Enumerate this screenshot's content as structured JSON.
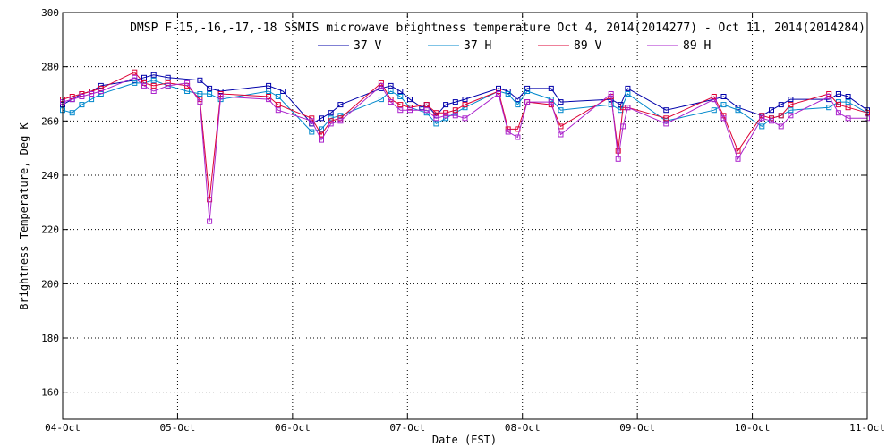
{
  "chart_data": {
    "type": "line",
    "title": "DMSP F-15,-16,-17,-18 SSMIS microwave brightness temperature Oct  4, 2014(2014277) - Oct 11, 2014(2014284)",
    "xlabel": "Date (EST)",
    "ylabel": "Brightness Temperature, Deg K",
    "xlim": [
      "2014-10-04T00:00",
      "2014-10-11T00:00"
    ],
    "ylim": [
      150,
      300
    ],
    "x_ticks": [
      "04-Oct",
      "05-Oct",
      "06-Oct",
      "07-Oct",
      "08-Oct",
      "09-Oct",
      "10-Oct",
      "11-Oct"
    ],
    "y_ticks": [
      160,
      180,
      200,
      220,
      240,
      260,
      280,
      300
    ],
    "grid": true,
    "legend_position": "top-center",
    "series": [
      {
        "name": "37 V",
        "color": "#0000aa",
        "points": [
          [
            "2014-10-04T00:00",
            266
          ],
          [
            "2014-10-04T02:00",
            268
          ],
          [
            "2014-10-04T04:00",
            270
          ],
          [
            "2014-10-04T06:00",
            271
          ],
          [
            "2014-10-04T08:00",
            273
          ],
          [
            "2014-10-04T15:00",
            275
          ],
          [
            "2014-10-04T17:00",
            276
          ],
          [
            "2014-10-04T19:00",
            277
          ],
          [
            "2014-10-04T22:00",
            276
          ],
          [
            "2014-10-05T04:40",
            275
          ],
          [
            "2014-10-05T06:40",
            272
          ],
          [
            "2014-10-05T09:00",
            271
          ],
          [
            "2014-10-05T19:00",
            273
          ],
          [
            "2014-10-05T22:00",
            271
          ],
          [
            "2014-10-06T04:00",
            259
          ],
          [
            "2014-10-06T06:00",
            261
          ],
          [
            "2014-10-06T08:00",
            263
          ],
          [
            "2014-10-06T10:00",
            266
          ],
          [
            "2014-10-06T18:30",
            272
          ],
          [
            "2014-10-06T20:30",
            273
          ],
          [
            "2014-10-06T22:30",
            271
          ],
          [
            "2014-10-07T00:30",
            268
          ],
          [
            "2014-10-07T03:00",
            265
          ],
          [
            "2014-10-07T04:00",
            266
          ],
          [
            "2014-10-07T06:00",
            262
          ],
          [
            "2014-10-07T08:00",
            266
          ],
          [
            "2014-10-07T10:00",
            267
          ],
          [
            "2014-10-07T12:00",
            268
          ],
          [
            "2014-10-07T19:00",
            272
          ],
          [
            "2014-10-07T21:00",
            271
          ],
          [
            "2014-10-07T23:00",
            268
          ],
          [
            "2014-10-08T01:00",
            272
          ],
          [
            "2014-10-08T06:00",
            272
          ],
          [
            "2014-10-08T08:00",
            267
          ],
          [
            "2014-10-08T18:30",
            268
          ],
          [
            "2014-10-08T20:30",
            266
          ],
          [
            "2014-10-08T22:00",
            272
          ],
          [
            "2014-10-09T06:00",
            264
          ],
          [
            "2014-10-09T16:00",
            268
          ],
          [
            "2014-10-09T18:00",
            269
          ],
          [
            "2014-10-09T21:00",
            265
          ],
          [
            "2014-10-10T02:00",
            262
          ],
          [
            "2014-10-10T04:00",
            264
          ],
          [
            "2014-10-10T06:00",
            266
          ],
          [
            "2014-10-10T08:00",
            268
          ],
          [
            "2014-10-10T16:00",
            268
          ],
          [
            "2014-10-10T18:00",
            270
          ],
          [
            "2014-10-10T20:00",
            269
          ],
          [
            "2014-10-11T00:00",
            264
          ]
        ]
      },
      {
        "name": "37 H",
        "color": "#0088cc",
        "points": [
          [
            "2014-10-04T00:00",
            264
          ],
          [
            "2014-10-04T02:00",
            263
          ],
          [
            "2014-10-04T04:00",
            266
          ],
          [
            "2014-10-04T06:00",
            268
          ],
          [
            "2014-10-04T08:00",
            270
          ],
          [
            "2014-10-04T15:00",
            274
          ],
          [
            "2014-10-04T17:00",
            274
          ],
          [
            "2014-10-04T19:00",
            275
          ],
          [
            "2014-10-04T22:00",
            273
          ],
          [
            "2014-10-05T02:00",
            271
          ],
          [
            "2014-10-05T04:40",
            270
          ],
          [
            "2014-10-05T06:40",
            270
          ],
          [
            "2014-10-05T09:00",
            268
          ],
          [
            "2014-10-05T19:00",
            271
          ],
          [
            "2014-10-05T21:00",
            269
          ],
          [
            "2014-10-06T04:00",
            256
          ],
          [
            "2014-10-06T06:00",
            257
          ],
          [
            "2014-10-06T08:00",
            261
          ],
          [
            "2014-10-06T10:00",
            262
          ],
          [
            "2014-10-06T18:30",
            268
          ],
          [
            "2014-10-06T20:30",
            271
          ],
          [
            "2014-10-06T22:30",
            269
          ],
          [
            "2014-10-07T00:30",
            265
          ],
          [
            "2014-10-07T04:00",
            263
          ],
          [
            "2014-10-07T06:00",
            259
          ],
          [
            "2014-10-07T08:00",
            261
          ],
          [
            "2014-10-07T10:00",
            263
          ],
          [
            "2014-10-07T12:00",
            265
          ],
          [
            "2014-10-07T19:00",
            271
          ],
          [
            "2014-10-07T21:00",
            270
          ],
          [
            "2014-10-07T23:00",
            266
          ],
          [
            "2014-10-08T01:00",
            271
          ],
          [
            "2014-10-08T06:00",
            268
          ],
          [
            "2014-10-08T08:00",
            264
          ],
          [
            "2014-10-08T18:30",
            266
          ],
          [
            "2014-10-08T20:30",
            264
          ],
          [
            "2014-10-08T22:00",
            270
          ],
          [
            "2014-10-09T06:00",
            260
          ],
          [
            "2014-10-09T16:00",
            264
          ],
          [
            "2014-10-09T18:00",
            266
          ],
          [
            "2014-10-09T21:00",
            264
          ],
          [
            "2014-10-10T02:00",
            258
          ],
          [
            "2014-10-10T04:00",
            261
          ],
          [
            "2014-10-10T06:00",
            262
          ],
          [
            "2014-10-10T08:00",
            264
          ],
          [
            "2014-10-10T16:00",
            265
          ],
          [
            "2014-10-10T18:00",
            267
          ],
          [
            "2014-10-10T20:00",
            267
          ],
          [
            "2014-10-11T00:00",
            263
          ]
        ]
      },
      {
        "name": "89 V",
        "color": "#dd0033",
        "points": [
          [
            "2014-10-04T00:00",
            268
          ],
          [
            "2014-10-04T02:00",
            269
          ],
          [
            "2014-10-04T04:00",
            270
          ],
          [
            "2014-10-04T06:00",
            271
          ],
          [
            "2014-10-04T08:00",
            272
          ],
          [
            "2014-10-04T15:00",
            278
          ],
          [
            "2014-10-04T17:00",
            274
          ],
          [
            "2014-10-04T19:00",
            273
          ],
          [
            "2014-10-04T22:00",
            274
          ],
          [
            "2014-10-05T02:00",
            273
          ],
          [
            "2014-10-05T04:40",
            268
          ],
          [
            "2014-10-05T06:40",
            231
          ],
          [
            "2014-10-05T09:00",
            270
          ],
          [
            "2014-10-05T19:00",
            269
          ],
          [
            "2014-10-05T21:00",
            266
          ],
          [
            "2014-10-06T04:00",
            261
          ],
          [
            "2014-10-06T06:00",
            255
          ],
          [
            "2014-10-06T08:00",
            260
          ],
          [
            "2014-10-06T10:00",
            261
          ],
          [
            "2014-10-06T18:30",
            274
          ],
          [
            "2014-10-06T20:30",
            268
          ],
          [
            "2014-10-06T22:30",
            266
          ],
          [
            "2014-10-07T00:30",
            265
          ],
          [
            "2014-10-07T04:00",
            266
          ],
          [
            "2014-10-07T06:00",
            263
          ],
          [
            "2014-10-07T08:00",
            263
          ],
          [
            "2014-10-07T10:00",
            264
          ],
          [
            "2014-10-07T12:00",
            266
          ],
          [
            "2014-10-07T19:00",
            271
          ],
          [
            "2014-10-07T21:00",
            257
          ],
          [
            "2014-10-07T23:00",
            257
          ],
          [
            "2014-10-08T01:00",
            267
          ],
          [
            "2014-10-08T06:00",
            266
          ],
          [
            "2014-10-08T08:00",
            258
          ],
          [
            "2014-10-08T18:30",
            269
          ],
          [
            "2014-10-08T20:00",
            249
          ],
          [
            "2014-10-08T21:00",
            265
          ],
          [
            "2014-10-08T22:00",
            265
          ],
          [
            "2014-10-09T06:00",
            261
          ],
          [
            "2014-10-09T16:00",
            269
          ],
          [
            "2014-10-09T18:00",
            262
          ],
          [
            "2014-10-09T21:00",
            249
          ],
          [
            "2014-10-10T02:00",
            262
          ],
          [
            "2014-10-10T04:00",
            261
          ],
          [
            "2014-10-10T06:00",
            262
          ],
          [
            "2014-10-10T08:00",
            266
          ],
          [
            "2014-10-10T16:00",
            270
          ],
          [
            "2014-10-10T18:00",
            266
          ],
          [
            "2014-10-10T20:00",
            265
          ],
          [
            "2014-10-11T00:00",
            263
          ]
        ]
      },
      {
        "name": "89 H",
        "color": "#aa22cc",
        "points": [
          [
            "2014-10-04T00:00",
            267
          ],
          [
            "2014-10-04T02:00",
            268
          ],
          [
            "2014-10-04T04:00",
            269
          ],
          [
            "2014-10-04T06:00",
            270
          ],
          [
            "2014-10-04T08:00",
            271
          ],
          [
            "2014-10-04T15:00",
            276
          ],
          [
            "2014-10-04T17:00",
            273
          ],
          [
            "2014-10-04T19:00",
            271
          ],
          [
            "2014-10-04T22:00",
            273
          ],
          [
            "2014-10-05T02:00",
            274
          ],
          [
            "2014-10-05T04:40",
            267
          ],
          [
            "2014-10-05T06:40",
            223
          ],
          [
            "2014-10-05T09:00",
            269
          ],
          [
            "2014-10-05T19:00",
            268
          ],
          [
            "2014-10-05T21:00",
            264
          ],
          [
            "2014-10-06T04:00",
            260
          ],
          [
            "2014-10-06T06:00",
            253
          ],
          [
            "2014-10-06T08:00",
            259
          ],
          [
            "2014-10-06T10:00",
            260
          ],
          [
            "2014-10-06T18:30",
            273
          ],
          [
            "2014-10-06T20:30",
            267
          ],
          [
            "2014-10-06T22:30",
            264
          ],
          [
            "2014-10-07T00:30",
            264
          ],
          [
            "2014-10-07T04:00",
            264
          ],
          [
            "2014-10-07T06:00",
            261
          ],
          [
            "2014-10-07T08:00",
            262
          ],
          [
            "2014-10-07T10:00",
            262
          ],
          [
            "2014-10-07T12:00",
            261
          ],
          [
            "2014-10-07T19:00",
            270
          ],
          [
            "2014-10-07T21:00",
            256
          ],
          [
            "2014-10-07T23:00",
            254
          ],
          [
            "2014-10-08T01:00",
            267
          ],
          [
            "2014-10-08T06:00",
            267
          ],
          [
            "2014-10-08T08:00",
            255
          ],
          [
            "2014-10-08T18:30",
            270
          ],
          [
            "2014-10-08T20:00",
            246
          ],
          [
            "2014-10-08T21:00",
            258
          ],
          [
            "2014-10-08T22:00",
            265
          ],
          [
            "2014-10-09T06:00",
            259
          ],
          [
            "2014-10-09T16:00",
            268
          ],
          [
            "2014-10-09T18:00",
            261
          ],
          [
            "2014-10-09T21:00",
            246
          ],
          [
            "2014-10-10T02:00",
            261
          ],
          [
            "2014-10-10T04:00",
            260
          ],
          [
            "2014-10-10T06:00",
            258
          ],
          [
            "2014-10-10T08:00",
            262
          ],
          [
            "2014-10-10T16:00",
            269
          ],
          [
            "2014-10-10T18:00",
            263
          ],
          [
            "2014-10-10T20:00",
            261
          ],
          [
            "2014-10-11T00:00",
            261
          ]
        ]
      }
    ]
  }
}
